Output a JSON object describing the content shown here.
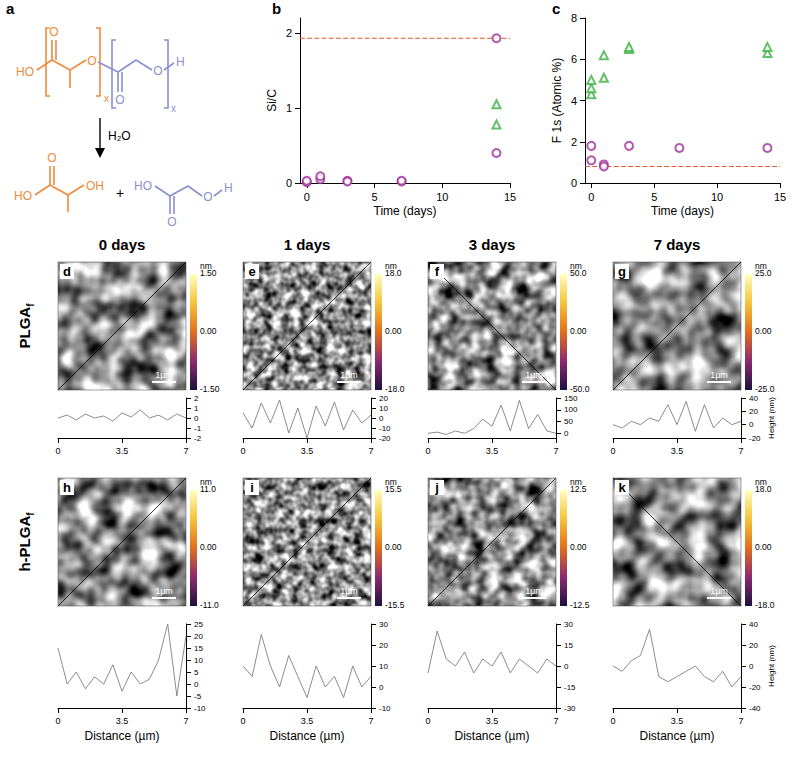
{
  "panel_a": {
    "label": "a",
    "reactant": {
      "lactyl": {
        "color": "#f08a3c",
        "end": "HO",
        "carbonyl": "O",
        "oxygen": "O",
        "repeat": "x"
      },
      "glycolyl": {
        "color": "#8a8fd0",
        "carbonyl": "O",
        "oxygen": "O",
        "end": "H",
        "repeat": "x"
      }
    },
    "reagent": "H₂O",
    "lactic_acid": {
      "color": "#f08a3c",
      "acid": "HO",
      "carbonyl": "O",
      "hydroxyl": "OH"
    },
    "glycolic_acid": {
      "color": "#8a8fd0",
      "acid": "HO",
      "carbonyl": "O",
      "oxygen": "O",
      "end": "H"
    },
    "plus": "+"
  },
  "chart_data": [
    {
      "type": "scatter",
      "label": "b",
      "xlabel": "Time (days)",
      "ylabel": "Si/C",
      "xlim": [
        -0.5,
        15
      ],
      "xticks": [
        0,
        5,
        10,
        15
      ],
      "ylim": [
        0,
        2.2
      ],
      "yticks": [
        0,
        1,
        2
      ],
      "grid": false,
      "series": [
        {
          "color": "#a0309a",
          "marker": "circle",
          "x": [
            0,
            0,
            1,
            1,
            3,
            3,
            7,
            7,
            14,
            14
          ],
          "values": [
            0.01,
            0.03,
            0.05,
            0.09,
            0.03,
            0.02,
            0.02,
            0.03,
            1.93,
            0.4
          ]
        },
        {
          "color": "#3cb043",
          "marker": "triangle",
          "x": [
            14,
            14
          ],
          "values": [
            1.05,
            0.78
          ]
        },
        {
          "type": "line",
          "line_style": "dashed",
          "color": "#e8542a",
          "x": [
            -0.5,
            15
          ],
          "values": [
            1.93,
            1.93
          ]
        }
      ]
    },
    {
      "type": "scatter",
      "label": "c",
      "xlabel": "Time (days)",
      "ylabel": "F 1s (Atomic %)",
      "xlim": [
        -0.5,
        15
      ],
      "xticks": [
        0,
        5,
        10,
        15
      ],
      "ylim": [
        0,
        8
      ],
      "yticks": [
        0,
        2,
        4,
        6,
        8
      ],
      "grid": false,
      "series": [
        {
          "color": "#3cb043",
          "marker": "triangle",
          "x": [
            0,
            0,
            0,
            1,
            1,
            3,
            3,
            14,
            14
          ],
          "values": [
            4.3,
            4.6,
            5.0,
            5.1,
            6.2,
            6.5,
            6.6,
            6.3,
            6.6
          ]
        },
        {
          "color": "#a0309a",
          "marker": "circle",
          "x": [
            0,
            0,
            1,
            1,
            3,
            7,
            14
          ],
          "values": [
            1.8,
            1.1,
            0.9,
            0.8,
            1.8,
            1.7,
            1.7
          ]
        },
        {
          "type": "line",
          "line_style": "dashed",
          "color": "#e8542a",
          "x": [
            -0.5,
            15
          ],
          "values": [
            0.8,
            0.8
          ]
        }
      ]
    }
  ],
  "afm": {
    "columns": [
      "0 days",
      "1 days",
      "3 days",
      "7 days"
    ],
    "scale_bar": "1µm",
    "unit": "nm",
    "profile_x_label": "Distance (µm)",
    "profile_y_label": "Height (nm)",
    "profile_color": "#7f7f7f",
    "profile_xlim": [
      0,
      7
    ],
    "profile_xticks": [
      0,
      3.5,
      7
    ],
    "profile_x": [
      0,
      0.5,
      1,
      1.5,
      2,
      2.5,
      3,
      3.5,
      4,
      4.5,
      5,
      5.5,
      6,
      6.5,
      7
    ],
    "rows": [
      {
        "title": {
          "text": "PLGA",
          "subscript": "f"
        },
        "images": [
          {
            "label": "d",
            "colorbar": {
              "range": [
                -1.5,
                1.5
              ],
              "ticks": [
                {
                  "value": 1.5,
                  "label": "1.50"
                },
                {
                  "value": 0,
                  "label": "0.00"
                },
                {
                  "value": -1.5,
                  "label": "-1.50"
                }
              ]
            },
            "profile": {
              "ylim": [
                -2,
                2
              ],
              "yticks": [
                -2,
                -1,
                0,
                1,
                2
              ],
              "values": [
                0,
                0.3,
                -0.2,
                0.4,
                0,
                0.2,
                -0.3,
                0.5,
                0.1,
                0.8,
                0,
                0.3,
                -0.2,
                0.4,
                0
              ]
            }
          },
          {
            "label": "e",
            "colorbar": {
              "range": [
                -18,
                18
              ],
              "ticks": [
                {
                  "value": 18,
                  "label": "18.0"
                },
                {
                  "value": 0,
                  "label": "0.00"
                },
                {
                  "value": -18,
                  "label": "-18.0"
                }
              ]
            },
            "profile": {
              "ylim": [
                -20,
                20
              ],
              "yticks": [
                -20,
                -10,
                0,
                10,
                20
              ],
              "values": [
                5,
                -10,
                15,
                -5,
                18,
                -15,
                10,
                -20,
                12,
                -8,
                16,
                -12,
                8,
                -5,
                3
              ]
            }
          },
          {
            "label": "f",
            "colorbar": {
              "range": [
                -50,
                50
              ],
              "ticks": [
                {
                  "value": 50,
                  "label": "50.0"
                },
                {
                  "value": 0,
                  "label": "0.00"
                },
                {
                  "value": -50,
                  "label": "-50.0"
                }
              ]
            },
            "profile": {
              "ylim": [
                -20,
                150
              ],
              "yticks": [
                0,
                50,
                100,
                150
              ],
              "values": [
                0,
                5,
                -5,
                10,
                0,
                20,
                60,
                30,
                120,
                10,
                140,
                20,
                80,
                10,
                0
              ]
            }
          },
          {
            "label": "g",
            "colorbar": {
              "range": [
                -25,
                25
              ],
              "ticks": [
                {
                  "value": 25,
                  "label": "25.0"
                },
                {
                  "value": 0,
                  "label": "0.00"
                },
                {
                  "value": -25,
                  "label": "-25.0"
                }
              ]
            },
            "profile": {
              "ylim": [
                -20,
                40
              ],
              "yticks": [
                -20,
                0,
                20,
                40
              ],
              "values": [
                0,
                -5,
                5,
                0,
                10,
                5,
                30,
                0,
                35,
                -10,
                30,
                -5,
                10,
                0,
                5
              ]
            }
          }
        ]
      },
      {
        "title": {
          "text": "h-PLGA",
          "subscript": "f"
        },
        "images": [
          {
            "label": "h",
            "colorbar": {
              "range": [
                -11,
                11
              ],
              "ticks": [
                {
                  "value": 11,
                  "label": "11.0"
                },
                {
                  "value": 0,
                  "label": "0.00"
                },
                {
                  "value": -11,
                  "label": "-11.0"
                }
              ]
            },
            "profile": {
              "ylim": [
                -10,
                25
              ],
              "yticks": [
                -10,
                -5,
                0,
                5,
                10,
                15,
                20,
                25
              ],
              "values": [
                15,
                0,
                5,
                -2,
                3,
                0,
                8,
                -3,
                5,
                0,
                2,
                10,
                25,
                -5,
                20
              ]
            }
          },
          {
            "label": "i",
            "colorbar": {
              "range": [
                -15.5,
                15.5
              ],
              "ticks": [
                {
                  "value": 15.5,
                  "label": "15.5"
                },
                {
                  "value": 0,
                  "label": "0.00"
                },
                {
                  "value": -15.5,
                  "label": "-15.5"
                }
              ]
            },
            "profile": {
              "ylim": [
                -10,
                30
              ],
              "yticks": [
                -10,
                0,
                10,
                20,
                30
              ],
              "values": [
                10,
                5,
                25,
                10,
                0,
                15,
                5,
                -5,
                10,
                0,
                5,
                -5,
                10,
                0,
                5
              ]
            }
          },
          {
            "label": "j",
            "colorbar": {
              "range": [
                -12.5,
                12.5
              ],
              "ticks": [
                {
                  "value": 12.5,
                  "label": "12.5"
                },
                {
                  "value": 0,
                  "label": "0.00"
                },
                {
                  "value": -12.5,
                  "label": "-12.5"
                }
              ]
            },
            "profile": {
              "ylim": [
                -30,
                30
              ],
              "yticks": [
                -30,
                -15,
                0,
                15,
                30
              ],
              "values": [
                -5,
                25,
                5,
                0,
                10,
                -5,
                5,
                0,
                10,
                -5,
                5,
                0,
                -5,
                5,
                0
              ]
            }
          },
          {
            "label": "k",
            "colorbar": {
              "range": [
                -18,
                18
              ],
              "ticks": [
                {
                  "value": 18,
                  "label": "18.0"
                },
                {
                  "value": 0,
                  "label": "0.00"
                },
                {
                  "value": -18,
                  "label": "-18.0"
                }
              ]
            },
            "profile": {
              "ylim": [
                -40,
                40
              ],
              "yticks": [
                -40,
                -20,
                0,
                20,
                40
              ],
              "values": [
                0,
                -5,
                5,
                10,
                35,
                -10,
                -15,
                -10,
                -5,
                0,
                -10,
                -15,
                -5,
                -20,
                -10
              ]
            }
          }
        ]
      }
    ]
  }
}
